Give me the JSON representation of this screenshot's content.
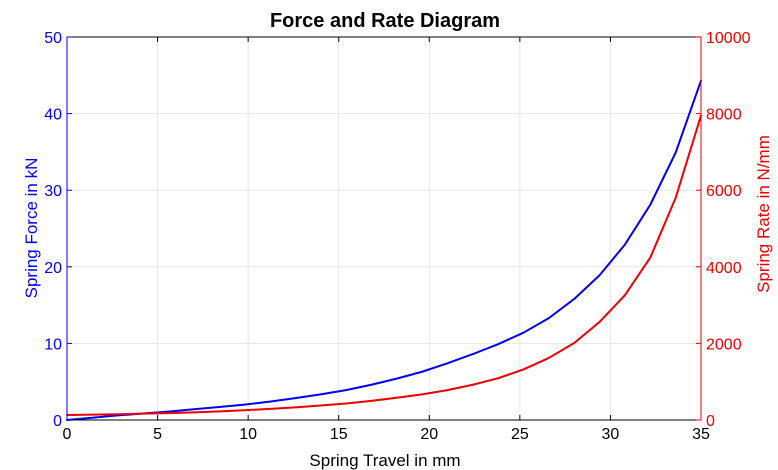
{
  "chart_data": {
    "type": "line",
    "title": "Force and Rate Diagram",
    "xlabel": "Spring Travel in mm",
    "ylabel_left": "Spring Force in kN",
    "ylabel_right": "Spring Rate in N/mm",
    "xlim": [
      0,
      35
    ],
    "ylim_left": [
      0,
      50
    ],
    "ylim_right": [
      0,
      10000
    ],
    "xticks": [
      0,
      5,
      10,
      15,
      20,
      25,
      30,
      35
    ],
    "yticks_left": [
      0,
      10,
      20,
      30,
      40,
      50
    ],
    "yticks_right": [
      0,
      2000,
      4000,
      6000,
      8000,
      10000
    ],
    "grid": true,
    "colors": {
      "left_axis": "#0000ee",
      "right_axis": "#ee0000",
      "frame": "#000000"
    },
    "series": [
      {
        "axis": "left",
        "color": "#0000ee",
        "x": [
          0,
          1.4,
          2.8,
          4.2,
          5.6,
          7.0,
          8.4,
          9.8,
          11.2,
          12.6,
          14.0,
          15.4,
          16.8,
          18.2,
          19.6,
          21.0,
          22.4,
          23.8,
          25.2,
          26.6,
          28.0,
          29.4,
          30.8,
          32.2,
          33.6,
          35.0
        ],
        "values": [
          0.0,
          0.3,
          0.6,
          0.85,
          1.1,
          1.4,
          1.7,
          2.0,
          2.4,
          2.85,
          3.35,
          3.9,
          4.6,
          5.4,
          6.3,
          7.4,
          8.6,
          9.9,
          11.4,
          13.3,
          15.8,
          18.9,
          22.9,
          28.1,
          34.9,
          44.3
        ]
      },
      {
        "axis": "right",
        "color": "#ee0000",
        "x": [
          0,
          1.4,
          2.8,
          4.2,
          5.6,
          7.0,
          8.4,
          9.8,
          11.2,
          12.6,
          14.0,
          15.4,
          16.8,
          18.2,
          19.6,
          21.0,
          22.4,
          23.8,
          25.2,
          26.6,
          28.0,
          29.4,
          30.8,
          32.2,
          33.6,
          35.0
        ],
        "values": [
          130,
          140,
          150,
          165,
          180,
          200,
          225,
          255,
          290,
          330,
          380,
          430,
          500,
          580,
          670,
          780,
          920,
          1090,
          1320,
          1620,
          2010,
          2560,
          3260,
          4240,
          5800,
          7950
        ]
      }
    ]
  }
}
